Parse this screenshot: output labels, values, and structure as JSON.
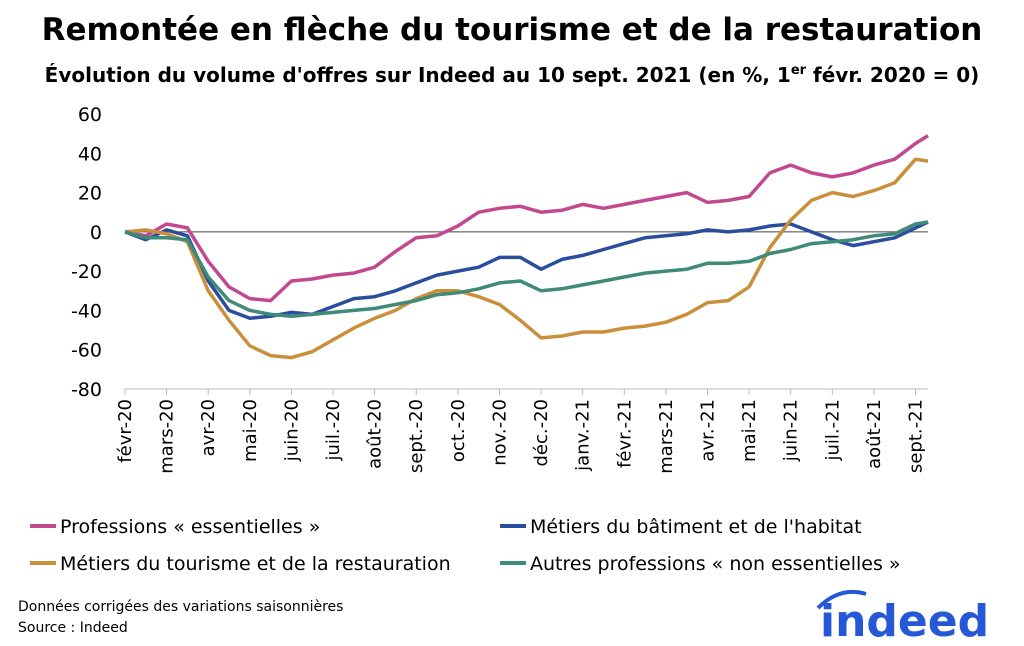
{
  "chart_data": {
    "type": "line",
    "title": "Remontée en flèche du tourisme et de la restauration",
    "subtitle": [
      "Évolution du volume d'offres sur Indeed au 10 sept. 2021 (en %, 1",
      "er",
      " févr. 2020 = 0)"
    ],
    "x": [
      0,
      0.5,
      1,
      1.5,
      2,
      2.5,
      3,
      3.5,
      4,
      4.5,
      5,
      5.5,
      6,
      6.5,
      7,
      7.5,
      8,
      8.5,
      9,
      9.5,
      10,
      10.5,
      11,
      11.5,
      12,
      12.5,
      13,
      13.5,
      14,
      14.5,
      15,
      15.5,
      16,
      16.5,
      17,
      17.5,
      18,
      18.5,
      19,
      19.3
    ],
    "xlim": [
      0,
      19.3
    ],
    "xticks": [
      {
        "value": 0,
        "label": "févr-20"
      },
      {
        "value": 1,
        "label": "mars-20"
      },
      {
        "value": 2,
        "label": "avr-20"
      },
      {
        "value": 3,
        "label": "mai-20"
      },
      {
        "value": 4,
        "label": "juin-20"
      },
      {
        "value": 5,
        "label": "juil.-20"
      },
      {
        "value": 6,
        "label": "août-20"
      },
      {
        "value": 7,
        "label": "sept.-20"
      },
      {
        "value": 8,
        "label": "oct.-20"
      },
      {
        "value": 9,
        "label": "nov.-20"
      },
      {
        "value": 10,
        "label": "déc.-20"
      },
      {
        "value": 11,
        "label": "janv.-21"
      },
      {
        "value": 12,
        "label": "févr.-21"
      },
      {
        "value": 13,
        "label": "mars-21"
      },
      {
        "value": 14,
        "label": "avr.-21"
      },
      {
        "value": 15,
        "label": "mai-21"
      },
      {
        "value": 16,
        "label": "juin-21"
      },
      {
        "value": 17,
        "label": "juil.-21"
      },
      {
        "value": 18,
        "label": "août-21"
      },
      {
        "value": 19,
        "label": "sept.-21"
      }
    ],
    "ylim": [
      -80,
      60
    ],
    "yticks": [
      -80,
      -60,
      -40,
      -20,
      0,
      20,
      40,
      60
    ],
    "series": [
      {
        "name": "Professions « essentielles »",
        "color": "#c2488f",
        "values": [
          0,
          -2,
          4,
          2,
          -15,
          -28,
          -34,
          -35,
          -25,
          -24,
          -22,
          -21,
          -18,
          -10,
          -3,
          -2,
          3,
          10,
          12,
          13,
          10,
          11,
          14,
          12,
          14,
          16,
          18,
          20,
          15,
          16,
          18,
          30,
          34,
          30,
          28,
          30,
          34,
          37,
          45,
          49
        ]
      },
      {
        "name": "Métiers du bâtiment et de l'habitat",
        "color": "#2a4d9c",
        "values": [
          0,
          -4,
          1,
          -2,
          -25,
          -40,
          -44,
          -43,
          -41,
          -42,
          -38,
          -34,
          -33,
          -30,
          -26,
          -22,
          -20,
          -18,
          -13,
          -13,
          -19,
          -14,
          -12,
          -9,
          -6,
          -3,
          -2,
          -1,
          1,
          0,
          1,
          3,
          4,
          0,
          -4,
          -7,
          -5,
          -3,
          2,
          5
        ]
      },
      {
        "name": "Métiers du tourisme et de la restauration",
        "color": "#c98f3a",
        "values": [
          0,
          1,
          -1,
          -5,
          -30,
          -45,
          -58,
          -63,
          -64,
          -61,
          -55,
          -49,
          -44,
          -40,
          -34,
          -30,
          -30,
          -33,
          -37,
          -45,
          -54,
          -53,
          -51,
          -51,
          -49,
          -48,
          -46,
          -42,
          -36,
          -35,
          -28,
          -8,
          6,
          16,
          20,
          18,
          21,
          25,
          37,
          36
        ]
      },
      {
        "name": "Autres professions « non essentielles »",
        "color": "#3f8a78",
        "values": [
          0,
          -3,
          -3,
          -4,
          -23,
          -35,
          -40,
          -42,
          -43,
          -42,
          -41,
          -40,
          -39,
          -37,
          -35,
          -32,
          -31,
          -29,
          -26,
          -25,
          -30,
          -29,
          -27,
          -25,
          -23,
          -21,
          -20,
          -19,
          -16,
          -16,
          -15,
          -11,
          -9,
          -6,
          -5,
          -4,
          -2,
          -1,
          4,
          5
        ]
      }
    ],
    "notes": [
      "Données corrigées des variations saisonnières",
      "Source : Indeed"
    ],
    "logo": "indeed"
  }
}
